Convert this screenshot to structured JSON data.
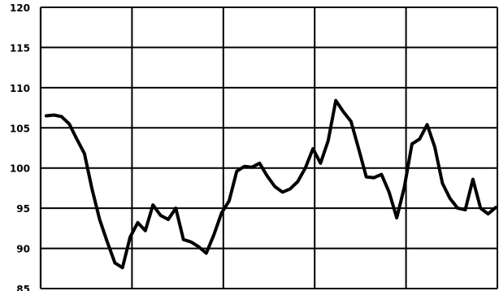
{
  "chart_data": {
    "type": "line",
    "title": "",
    "xlabel": "",
    "ylabel": "",
    "ylim": [
      85,
      120
    ],
    "yticks": [
      85,
      90,
      95,
      100,
      105,
      110,
      115,
      120
    ],
    "x_gridlines": 5,
    "grid": true,
    "legend": "none",
    "line_color": "#000000",
    "series": [
      {
        "values": [
          106.5,
          106.6,
          106.4,
          105.5,
          103.6,
          101.8,
          97.4,
          93.6,
          90.8,
          88.2,
          87.6,
          91.4,
          93.2,
          92.2,
          95.4,
          94.1,
          93.6,
          95.0,
          91.1,
          90.8,
          90.2,
          89.4,
          91.7,
          94.4,
          95.9,
          99.6,
          100.2,
          100.1,
          100.6,
          99.0,
          97.7,
          97.0,
          97.4,
          98.3,
          100.0,
          102.4,
          100.6,
          103.4,
          108.4,
          107.0,
          105.8,
          102.4,
          98.9,
          98.8,
          99.2,
          97.0,
          93.8,
          97.6,
          103.0,
          103.6,
          105.4,
          102.6,
          98.1,
          96.2,
          95.0,
          94.8,
          98.6,
          95.0,
          94.3,
          95.1
        ]
      }
    ]
  }
}
